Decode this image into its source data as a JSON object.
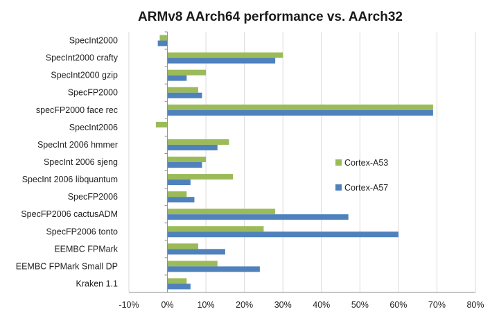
{
  "chart_data": {
    "type": "bar",
    "orientation": "horizontal",
    "title": "ARMv8 AArch64 performance vs. AArch32",
    "xlabel": "",
    "ylabel": "",
    "xlim": [
      -0.1,
      0.8
    ],
    "x_ticks": [
      -0.1,
      0.0,
      0.1,
      0.2,
      0.3,
      0.4,
      0.5,
      0.6,
      0.7,
      0.8
    ],
    "x_tick_labels": [
      "-10%",
      "0%",
      "10%",
      "20%",
      "30%",
      "40%",
      "50%",
      "60%",
      "70%",
      "80%"
    ],
    "grid": "vertical",
    "legend_position": "right",
    "categories": [
      "SpecInt2000",
      "SpecInt2000 crafty",
      "SpecInt2000 gzip",
      "SpecFP2000",
      "specFP2000 face rec",
      "SpecInt2006",
      "SpecInt 2006  hmmer",
      "SpecInt 2006  sjeng",
      "SpecInt 2006  libquantum",
      "SpecFP2006",
      "SpecFP2006 cactusADM",
      "SpecFP2006 tonto",
      "EEMBC FPMark",
      "EEMBC FPMark Small DP",
      "Kraken 1.1"
    ],
    "series": [
      {
        "name": "Cortex-A53",
        "color": "#9bbb59",
        "values": [
          -0.02,
          0.3,
          0.1,
          0.08,
          0.69,
          -0.03,
          0.16,
          0.1,
          0.17,
          0.05,
          0.28,
          0.25,
          0.08,
          0.13,
          0.05
        ]
      },
      {
        "name": "Cortex-A57",
        "color": "#4f81bd",
        "values": [
          -0.025,
          0.28,
          0.05,
          0.09,
          0.69,
          0.0,
          0.13,
          0.09,
          0.06,
          0.07,
          0.47,
          0.6,
          0.15,
          0.24,
          0.06
        ]
      }
    ]
  }
}
